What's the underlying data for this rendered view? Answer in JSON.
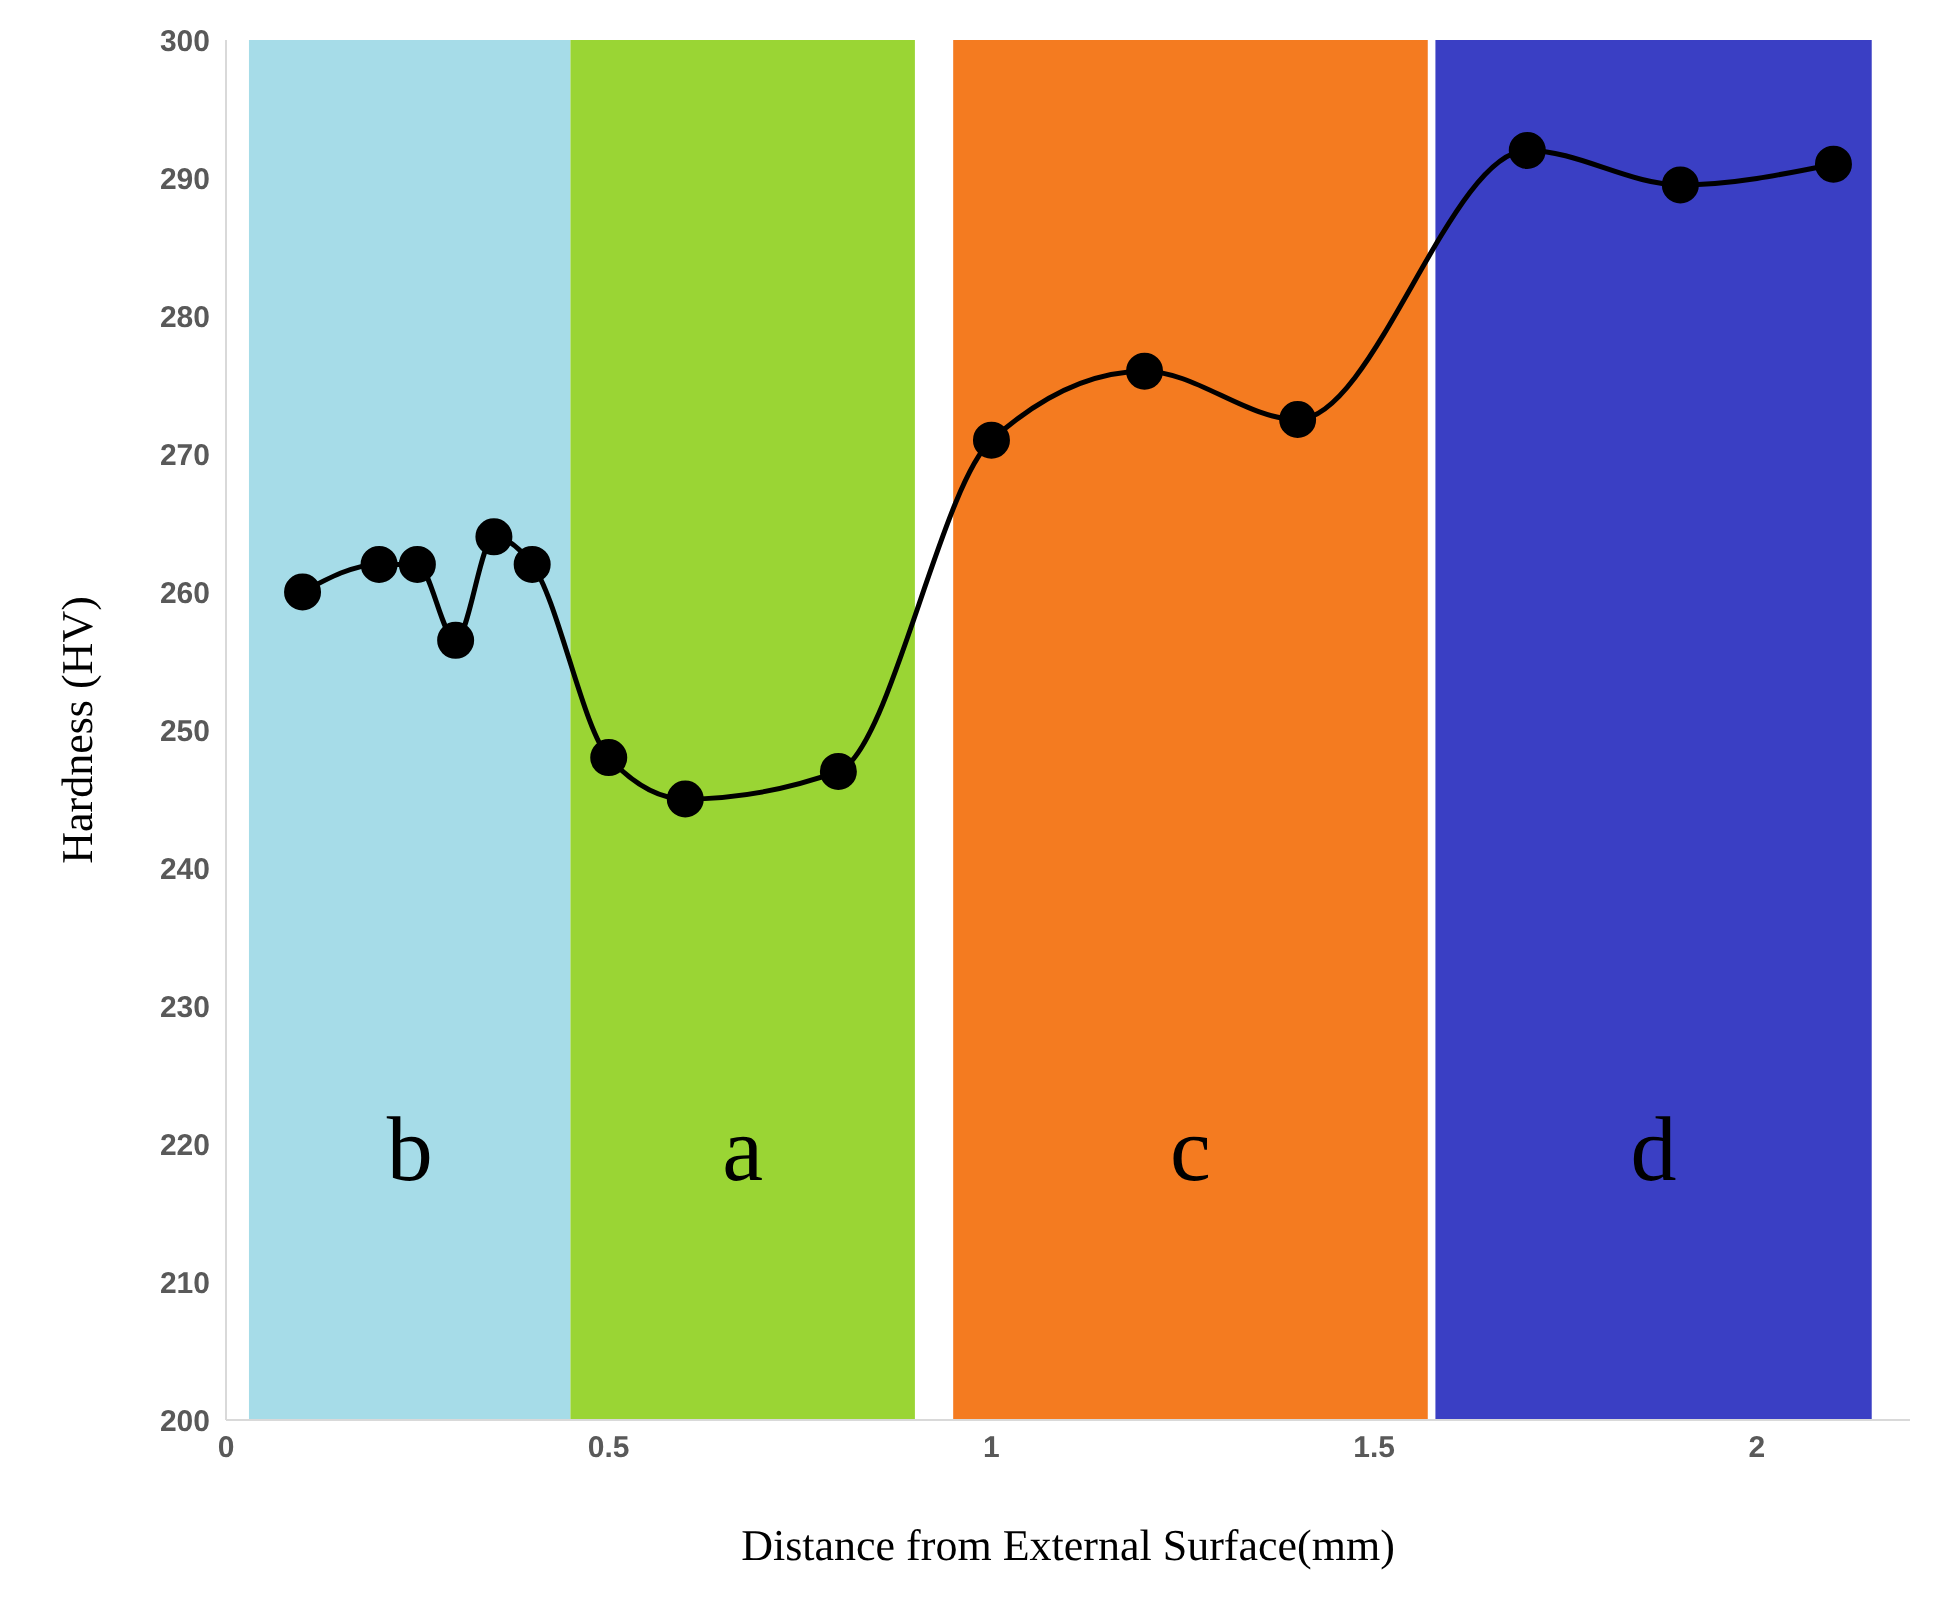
{
  "chart_data": {
    "type": "line",
    "xlabel": "Distance from External Surface(mm)",
    "ylabel": "Hardness (HV)",
    "x": [
      0.1,
      0.2,
      0.25,
      0.3,
      0.35,
      0.4,
      0.5,
      0.6,
      0.8,
      1.0,
      1.2,
      1.4,
      1.7,
      1.9,
      2.1
    ],
    "series": [
      {
        "color": "#000000",
        "values": [
          260,
          262,
          262,
          256.5,
          264,
          262,
          248,
          245,
          247,
          271,
          276,
          272.5,
          292,
          289.5,
          291
        ]
      }
    ],
    "xlim": [
      0,
      2.2
    ],
    "xticks": [
      0,
      0.5,
      1,
      1.5,
      2
    ],
    "ylim": [
      200,
      300
    ],
    "yticks": [
      200,
      210,
      220,
      230,
      240,
      250,
      260,
      270,
      280,
      290,
      300
    ],
    "marker": "circle",
    "line_style": "solid",
    "grid": false,
    "legend": false,
    "bands": [
      {
        "axis": "x",
        "from": 0.03,
        "to": 0.45,
        "color": "#a6dce8",
        "label": "b"
      },
      {
        "axis": "x",
        "from": 0.45,
        "to": 0.9,
        "color": "#9ad534",
        "label": "a"
      },
      {
        "axis": "x",
        "from": 0.95,
        "to": 1.57,
        "color": "#f47b20",
        "label": "c"
      },
      {
        "axis": "x",
        "from": 1.58,
        "to": 2.15,
        "color": "#3a3fc4",
        "label": "d"
      }
    ]
  }
}
